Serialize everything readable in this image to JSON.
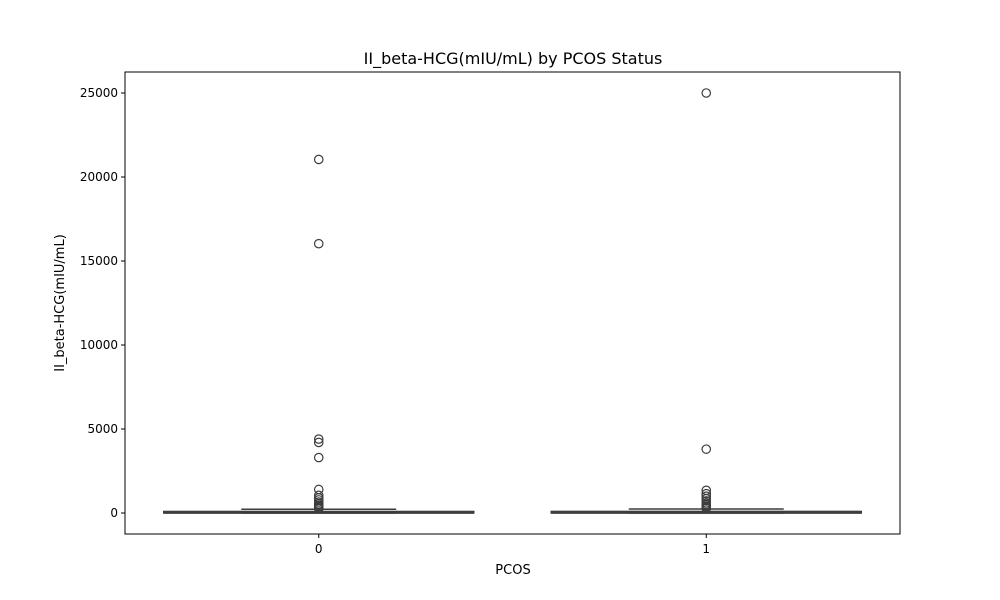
{
  "chart_data": {
    "type": "box",
    "title": "II_beta-HCG(mIU/mL) by PCOS Status",
    "xlabel": "PCOS",
    "ylabel": "II_beta-HCG(mIU/mL)",
    "categories": [
      "0",
      "1"
    ],
    "ylim": [
      -1250,
      26250
    ],
    "yticks": [
      0,
      5000,
      10000,
      15000,
      20000,
      25000
    ],
    "grid": false,
    "colors": {
      "box_fill": "#3a75b0",
      "line": "#3d3d3d",
      "frame": "#000000"
    },
    "boxes": [
      {
        "category": "0",
        "whisker_low": 1,
        "q1": 1.99,
        "median": 1.99,
        "q3": 91,
        "whisker_high": 225,
        "outliers": [
          21045,
          16030,
          4400,
          4200,
          3300,
          1400,
          1050,
          900,
          780,
          650,
          540,
          450,
          380,
          320,
          260
        ]
      },
      {
        "category": "1",
        "whisker_low": 1,
        "q1": 1.99,
        "median": 1.99,
        "q3": 94,
        "whisker_high": 235,
        "outliers": [
          25000,
          3800,
          1350,
          1150,
          1000,
          850,
          720,
          600,
          500,
          420,
          340,
          280
        ]
      }
    ]
  }
}
